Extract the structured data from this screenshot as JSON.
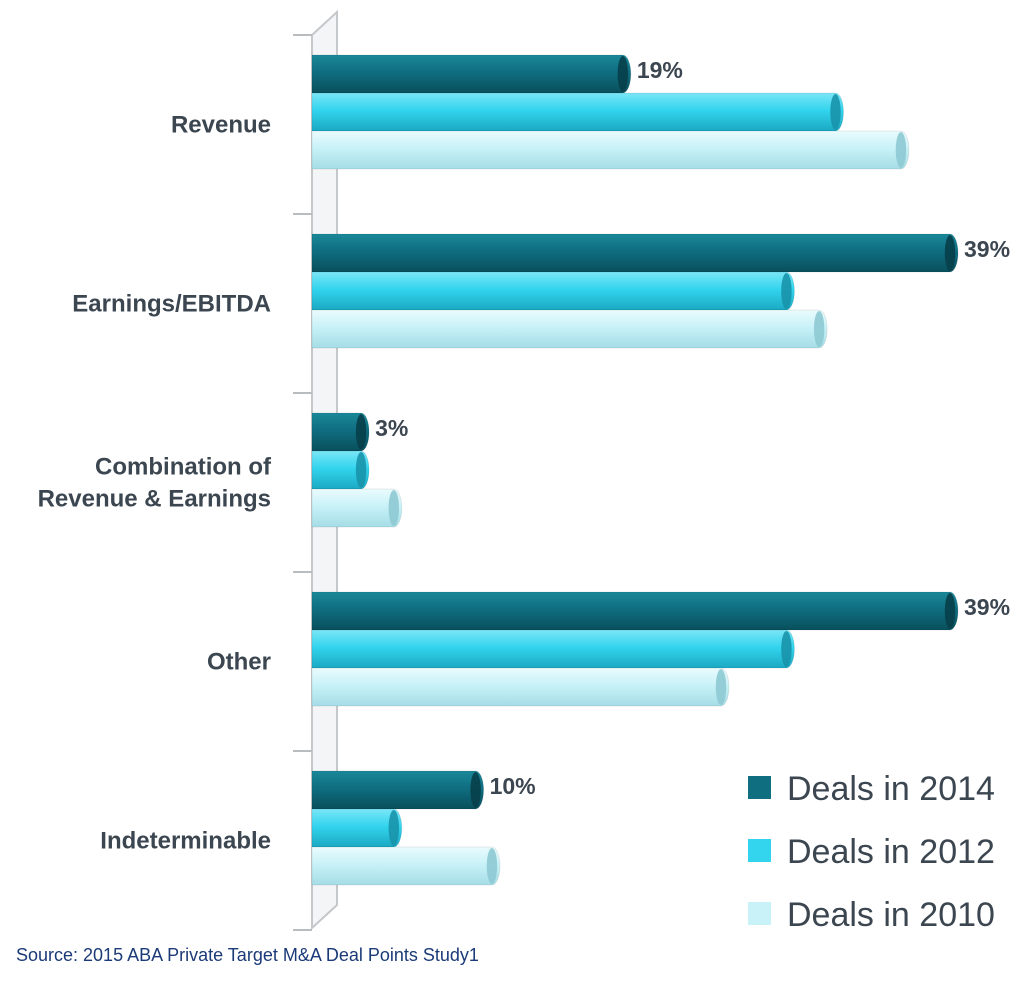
{
  "chart_data": {
    "type": "bar",
    "orientation": "horizontal",
    "style": "3d-cylinder",
    "categories": [
      "Revenue",
      "Earnings/EBITDA",
      "Combination of\nRevenue & Earnings",
      "Other",
      "Indeterminable"
    ],
    "series": [
      {
        "name": "Deals in 2014",
        "color": "#0f6e80",
        "values": [
          19,
          39,
          3,
          39,
          10
        ],
        "labels": [
          "19%",
          "39%",
          "3%",
          "39%",
          "10%"
        ]
      },
      {
        "name": "Deals in 2012",
        "color": "#33d4ee",
        "values": [
          32,
          29,
          3,
          29,
          5
        ]
      },
      {
        "name": "Deals in 2010",
        "color": "#c8f2f8",
        "values": [
          36,
          31,
          5,
          25,
          11
        ]
      }
    ],
    "xlim": [
      0,
      39
    ],
    "grid": false,
    "legend_position": "bottom-right"
  },
  "source": "Source: 2015 ABA Private Target M&A Deal Points Study1"
}
